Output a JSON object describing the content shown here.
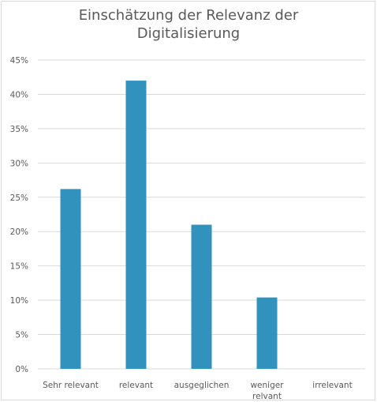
{
  "chart_data": {
    "type": "bar",
    "title_lines": [
      "Einschätzung der Relevanz der",
      "Digitalisierung"
    ],
    "categories": [
      [
        "Sehr relevant"
      ],
      [
        "relevant"
      ],
      [
        "ausgeglichen"
      ],
      [
        "weniger",
        "relvant"
      ],
      [
        "irrelevant"
      ]
    ],
    "values": [
      0.262,
      0.42,
      0.21,
      0.104,
      0.0
    ],
    "y_ticks": [
      "0%",
      "5%",
      "10%",
      "15%",
      "20%",
      "25%",
      "30%",
      "35%",
      "40%",
      "45%"
    ],
    "ylim": [
      0,
      0.45
    ],
    "grid": true,
    "bar_color": "#3193bd",
    "grid_color": "#d9d9d9"
  }
}
